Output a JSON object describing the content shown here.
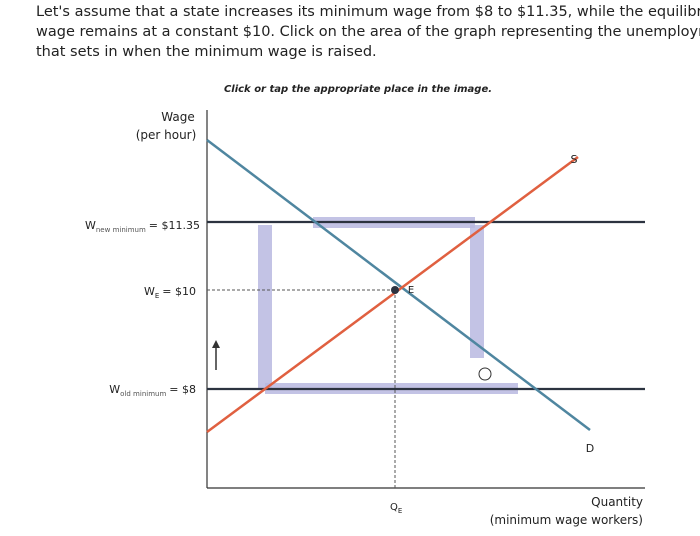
{
  "question": {
    "lines": [
      "Let's assume that a state increases its minimum wage from $8 to $11.35, while the equilibrium",
      "wage remains at a constant $10. Click on the area of the graph representing the unemployment",
      "that sets in when the minimum wage is raised."
    ]
  },
  "instruction": "Click or tap the appropriate place in the image.",
  "graph": {
    "y_axis_label": [
      "Wage",
      "(per hour)"
    ],
    "x_axis_label": [
      "Quantity",
      "(minimum wage workers)"
    ],
    "wage_new": {
      "symbol": "W",
      "subscript": "new minimum",
      "value": "= $11.35"
    },
    "wage_eq": {
      "symbol": "W",
      "subscript": "E",
      "value": "= $10"
    },
    "wage_old": {
      "symbol": "W",
      "subscript": "old minimum",
      "value": "= $8"
    },
    "supply_label": "S",
    "demand_label": "D",
    "equilibrium_label": "E",
    "quantity_eq": {
      "symbol": "Q",
      "subscript": "E"
    }
  }
}
